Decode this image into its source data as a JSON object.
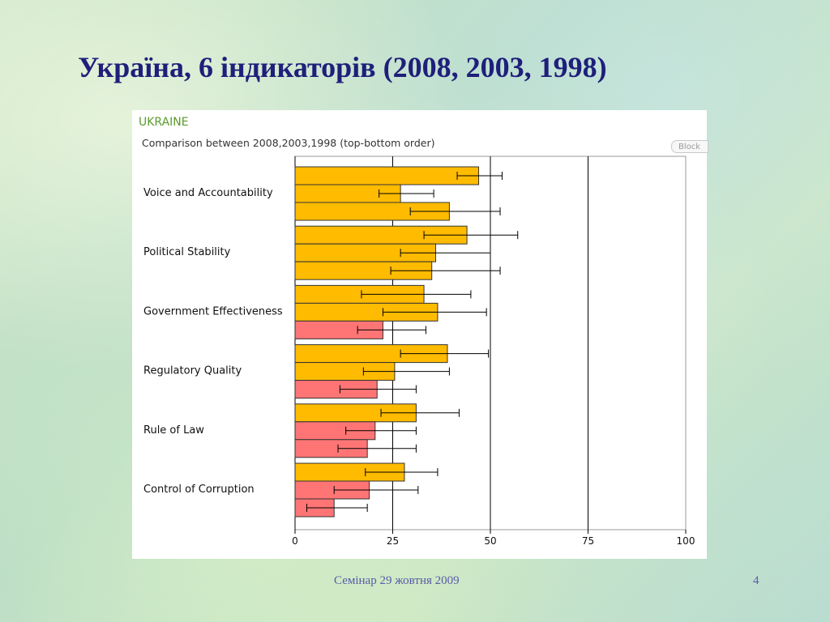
{
  "slide": {
    "title": "Україна, 6 індикаторів (2008, 2003, 1998)",
    "footer": "Семінар 29 жовтня 2009",
    "page_number": "4"
  },
  "chart_panel": {
    "block_button": "Block"
  },
  "colors": {
    "title": "#1f1f7a",
    "bar_orange": "#ffbb00",
    "bar_red": "#ff7575",
    "chart_title": "#5a9a2a"
  },
  "chart_data": {
    "type": "bar",
    "orientation": "horizontal",
    "title": "UKRAINE",
    "subtitle": "Comparison between 2008,2003,1998 (top-bottom order)",
    "xlim": [
      0,
      100
    ],
    "xticks": [
      0,
      25,
      50,
      75,
      100
    ],
    "categories": [
      "Voice and Accountability",
      "Political Stability",
      "Government Effectiveness",
      "Regulatory Quality",
      "Rule of Law",
      "Control of Corruption"
    ],
    "series_order": [
      "2008",
      "2003",
      "1998"
    ],
    "values": [
      [
        47,
        27,
        39.5
      ],
      [
        44,
        36,
        35
      ],
      [
        33,
        36.5,
        22.5
      ],
      [
        39,
        25.5,
        21
      ],
      [
        31,
        20.5,
        18.5
      ],
      [
        28,
        19,
        10
      ]
    ],
    "error_low": [
      [
        41.5,
        21.5,
        29.5
      ],
      [
        33,
        27,
        24.5
      ],
      [
        17,
        22.5,
        16
      ],
      [
        27,
        17.5,
        11.5
      ],
      [
        22,
        13,
        11
      ],
      [
        18,
        10,
        3
      ]
    ],
    "error_high": [
      [
        53,
        35.5,
        52.5
      ],
      [
        57,
        50,
        52.5
      ],
      [
        45,
        49,
        33.5
      ],
      [
        49.5,
        39.5,
        31
      ],
      [
        42,
        31,
        31
      ],
      [
        36.5,
        31.5,
        18.5
      ]
    ],
    "bar_colors": [
      [
        "orange",
        "orange",
        "orange"
      ],
      [
        "orange",
        "orange",
        "orange"
      ],
      [
        "orange",
        "orange",
        "red"
      ],
      [
        "orange",
        "orange",
        "red"
      ],
      [
        "orange",
        "red",
        "red"
      ],
      [
        "orange",
        "red",
        "red"
      ]
    ]
  }
}
